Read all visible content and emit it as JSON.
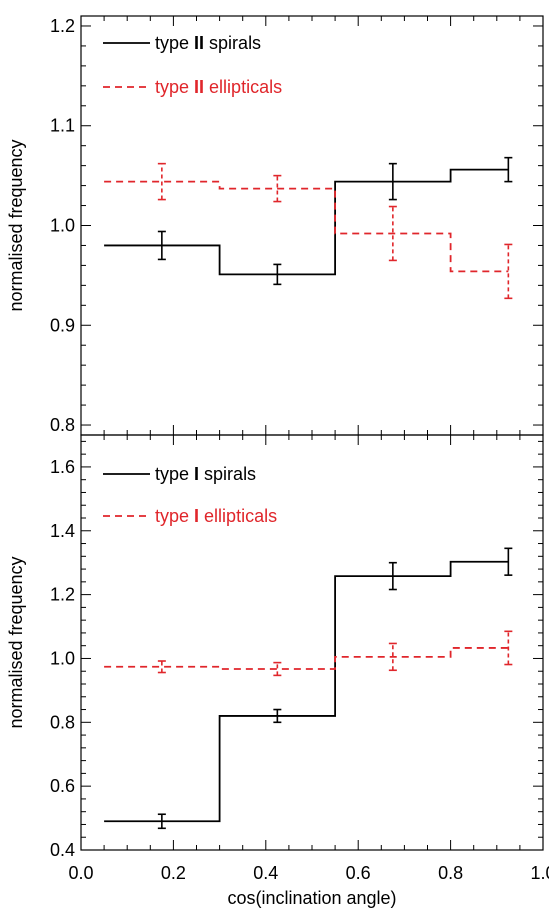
{
  "chart_data": [
    {
      "type": "line",
      "step": true,
      "ylabel": "normalised frequency",
      "xlabel": "",
      "xlim": [
        0.0,
        1.0
      ],
      "ylim": [
        0.79,
        1.21
      ],
      "yticks": [
        "0.8",
        "0.9",
        "1.0",
        "1.1",
        "1.2"
      ],
      "ytick_values": [
        0.8,
        0.9,
        1.0,
        1.1,
        1.2
      ],
      "bin_edges": [
        0.05,
        0.3,
        0.55,
        0.8,
        1.0
      ],
      "x": [
        0.175,
        0.425,
        0.675,
        0.925
      ],
      "series": [
        {
          "name": "type II spirals",
          "name_parts": {
            "prefix": "type ",
            "bold": "II",
            "suffix": " spirals"
          },
          "color": "#000000",
          "style": "solid",
          "bins": [
            {
              "x0": 0.05,
              "x1": 0.3,
              "y": 0.98
            },
            {
              "x0": 0.3,
              "x1": 0.55,
              "y": 0.951
            },
            {
              "x0": 0.55,
              "x1": 0.8,
              "y": 1.044
            },
            {
              "x0": 0.8,
              "x1": 0.925,
              "y": 1.056
            }
          ],
          "points": [
            {
              "x": 0.175,
              "y": 0.98,
              "err": 0.014
            },
            {
              "x": 0.425,
              "y": 0.951,
              "err": 0.01
            },
            {
              "x": 0.675,
              "y": 1.044,
              "err": 0.018
            },
            {
              "x": 0.925,
              "y": 1.056,
              "err": 0.012
            }
          ]
        },
        {
          "name": "type II ellipticals",
          "name_parts": {
            "prefix": "type ",
            "bold": "II",
            "suffix": " ellipticals"
          },
          "color": "#e0262b",
          "style": "dashed",
          "bins": [
            {
              "x0": 0.05,
              "x1": 0.3,
              "y": 1.044
            },
            {
              "x0": 0.3,
              "x1": 0.55,
              "y": 1.037
            },
            {
              "x0": 0.55,
              "x1": 0.8,
              "y": 0.992
            },
            {
              "x0": 0.8,
              "x1": 0.925,
              "y": 0.954
            }
          ],
          "points": [
            {
              "x": 0.175,
              "y": 1.044,
              "err": 0.018
            },
            {
              "x": 0.425,
              "y": 1.037,
              "err": 0.013
            },
            {
              "x": 0.675,
              "y": 0.992,
              "err": 0.027
            },
            {
              "x": 0.925,
              "y": 0.954,
              "err": 0.027
            }
          ]
        }
      ]
    },
    {
      "type": "line",
      "step": true,
      "ylabel": "normalised frequency",
      "xlabel": "cos(inclination angle)",
      "xlim": [
        0.0,
        1.0
      ],
      "ylim": [
        0.4,
        1.7
      ],
      "xticks": [
        "0.0",
        "0.2",
        "0.4",
        "0.6",
        "0.8",
        "1.0"
      ],
      "xtick_values": [
        0.0,
        0.2,
        0.4,
        0.6,
        0.8,
        1.0
      ],
      "yticks": [
        "0.4",
        "0.6",
        "0.8",
        "1.0",
        "1.2",
        "1.4",
        "1.6"
      ],
      "ytick_values": [
        0.4,
        0.6,
        0.8,
        1.0,
        1.2,
        1.4,
        1.6
      ],
      "bin_edges": [
        0.05,
        0.3,
        0.55,
        0.8,
        1.0
      ],
      "x": [
        0.175,
        0.425,
        0.675,
        0.925
      ],
      "series": [
        {
          "name": "type I spirals",
          "name_parts": {
            "prefix": "type ",
            "bold": "I",
            "suffix": " spirals"
          },
          "color": "#000000",
          "style": "solid",
          "bins": [
            {
              "x0": 0.05,
              "x1": 0.3,
              "y": 0.49
            },
            {
              "x0": 0.3,
              "x1": 0.55,
              "y": 0.82
            },
            {
              "x0": 0.55,
              "x1": 0.8,
              "y": 1.258
            },
            {
              "x0": 0.8,
              "x1": 0.925,
              "y": 1.303
            }
          ],
          "points": [
            {
              "x": 0.175,
              "y": 0.49,
              "err": 0.022
            },
            {
              "x": 0.425,
              "y": 0.82,
              "err": 0.02
            },
            {
              "x": 0.675,
              "y": 1.258,
              "err": 0.042
            },
            {
              "x": 0.925,
              "y": 1.303,
              "err": 0.042
            }
          ]
        },
        {
          "name": "type I ellipticals",
          "name_parts": {
            "prefix": "type ",
            "bold": "I",
            "suffix": " ellipticals"
          },
          "color": "#e0262b",
          "style": "dashed",
          "bins": [
            {
              "x0": 0.05,
              "x1": 0.3,
              "y": 0.974
            },
            {
              "x0": 0.3,
              "x1": 0.55,
              "y": 0.967
            },
            {
              "x0": 0.55,
              "x1": 0.8,
              "y": 1.005
            },
            {
              "x0": 0.8,
              "x1": 0.925,
              "y": 1.033
            }
          ],
          "points": [
            {
              "x": 0.175,
              "y": 0.974,
              "err": 0.018
            },
            {
              "x": 0.425,
              "y": 0.967,
              "err": 0.02
            },
            {
              "x": 0.675,
              "y": 1.005,
              "err": 0.042
            },
            {
              "x": 0.925,
              "y": 1.033,
              "err": 0.052
            }
          ]
        }
      ]
    }
  ]
}
